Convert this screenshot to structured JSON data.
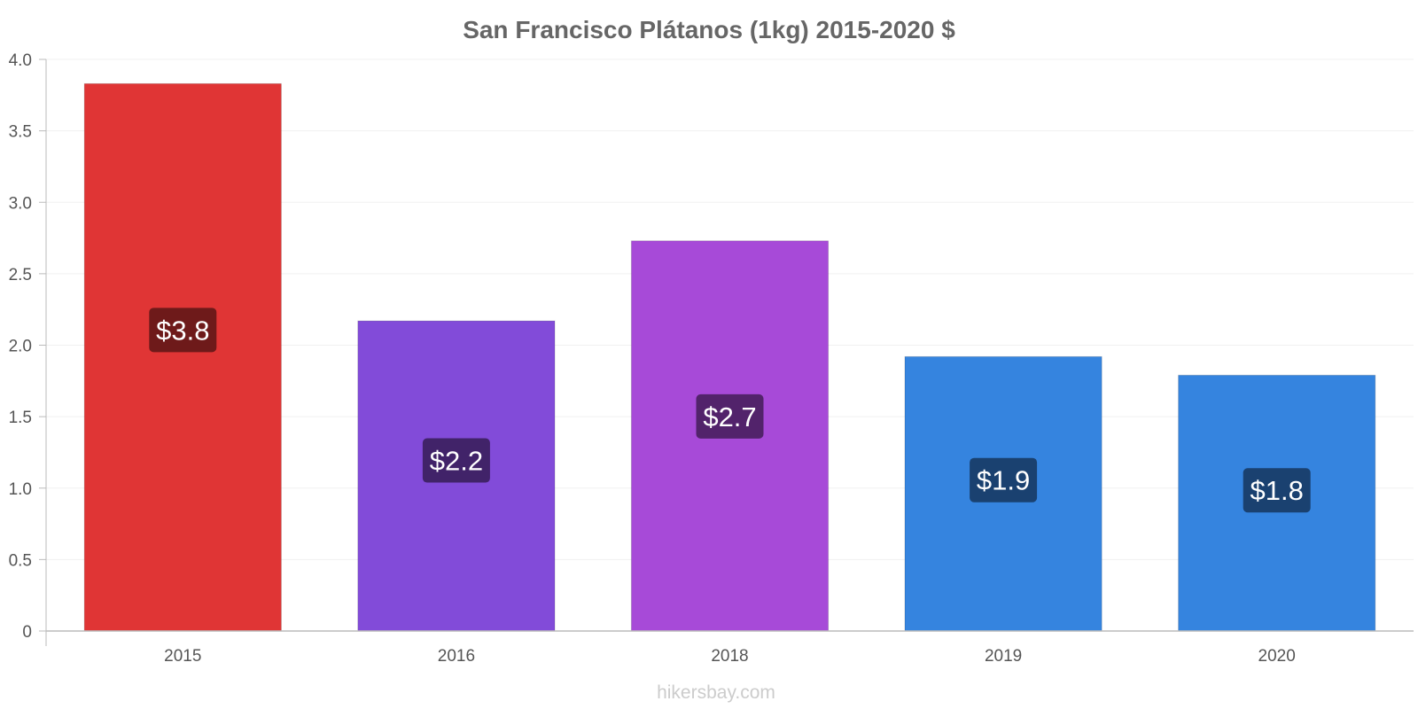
{
  "chart_data": {
    "type": "bar",
    "title": "San Francisco Plátanos (1kg) 2015-2020 $",
    "categories": [
      "2015",
      "2016",
      "2018",
      "2019",
      "2020"
    ],
    "values": [
      3.83,
      2.17,
      2.73,
      1.92,
      1.79
    ],
    "data_labels": [
      "$3.8",
      "$2.2",
      "$2.7",
      "$1.9",
      "$1.8"
    ],
    "bar_colors": [
      "#e03535",
      "#824bd9",
      "#a74ad8",
      "#3584df",
      "#3584df"
    ],
    "label_bg_colors": [
      "#6e1a1a",
      "#412369",
      "#52236b",
      "#1a4170",
      "#1a4170"
    ],
    "ylim": [
      0,
      4.0
    ],
    "yticks": [
      0,
      0.5,
      1.0,
      1.5,
      2.0,
      2.5,
      3.0,
      3.5,
      4.0
    ],
    "ytick_labels": [
      "0",
      "0.5",
      "1.0",
      "1.5",
      "2.0",
      "2.5",
      "3.0",
      "3.5",
      "4.0"
    ],
    "xlabel": "",
    "ylabel": "",
    "grid": true,
    "legend": "none"
  },
  "footer": {
    "credit": "hikersbay.com"
  }
}
